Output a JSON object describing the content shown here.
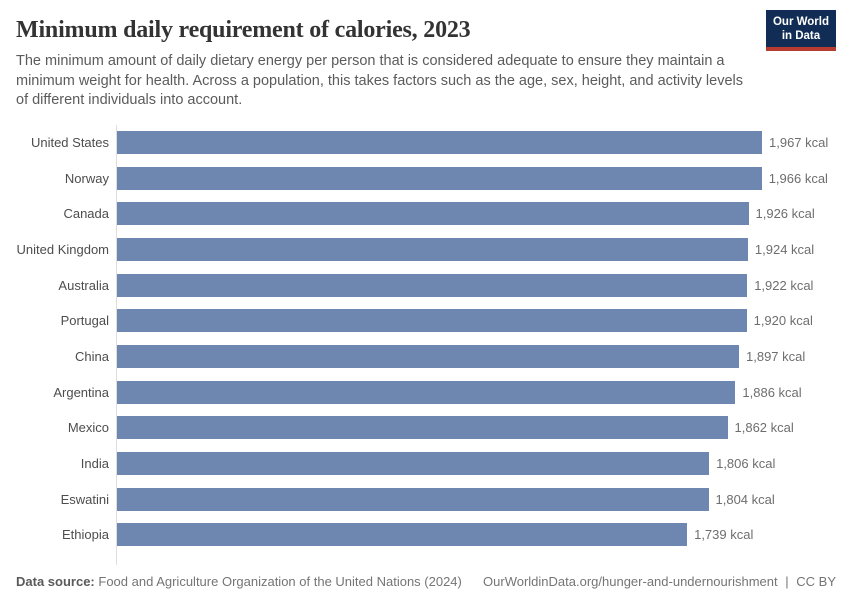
{
  "header": {
    "title": "Minimum daily requirement of calories, 2023",
    "subtitle": "The minimum amount of daily dietary energy per person that is considered adequate to ensure they maintain a minimum weight for health. Across a population, this takes factors such as the age, sex, height, and activity levels of different individuals into account.",
    "logo": {
      "line1": "Our World",
      "line2": "in Data",
      "bg_color": "#122d55",
      "accent_color": "#b63b31"
    }
  },
  "chart_data": {
    "type": "bar",
    "orientation": "horizontal",
    "title": "Minimum daily requirement of calories, 2023",
    "unit": "kcal",
    "categories": [
      "United States",
      "Norway",
      "Canada",
      "United Kingdom",
      "Australia",
      "Portugal",
      "China",
      "Argentina",
      "Mexico",
      "India",
      "Eswatini",
      "Ethiopia"
    ],
    "values": [
      1967,
      1966,
      1926,
      1924,
      1922,
      1920,
      1897,
      1886,
      1862,
      1806,
      1804,
      1739
    ],
    "value_labels": [
      "1,967 kcal",
      "1,966 kcal",
      "1,926 kcal",
      "1,924 kcal",
      "1,922 kcal",
      "1,920 kcal",
      "1,897 kcal",
      "1,886 kcal",
      "1,862 kcal",
      "1,806 kcal",
      "1,804 kcal",
      "1,739 kcal"
    ],
    "xlim": [
      0,
      1967
    ],
    "bar_color": "#6e87b0",
    "axis_color": "#dedede",
    "grid": false,
    "legend": false
  },
  "footer": {
    "source_label": "Data source:",
    "source_text": "Food and Agriculture Organization of the United Nations (2024)",
    "url": "OurWorldinData.org/hunger-and-undernourishment",
    "divider": "|",
    "license": "CC BY"
  }
}
